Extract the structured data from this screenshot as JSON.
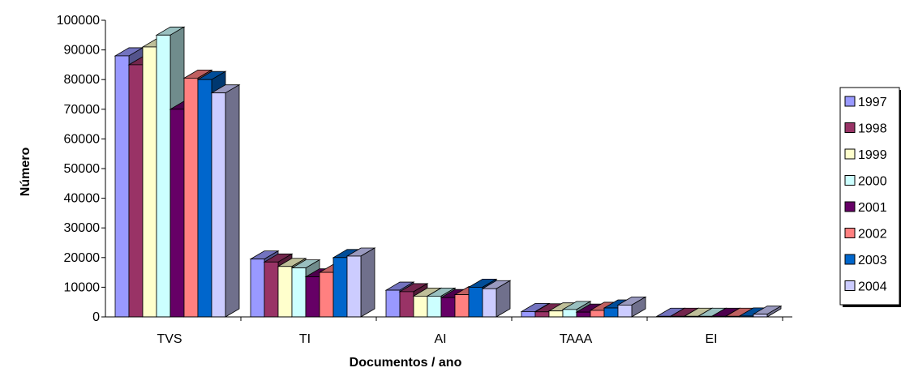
{
  "chart_data": {
    "type": "bar",
    "title": "",
    "xlabel": "Documentos / ano",
    "ylabel": "Número",
    "ylim": [
      0,
      100000
    ],
    "yticks": [
      0,
      10000,
      20000,
      30000,
      40000,
      50000,
      60000,
      70000,
      80000,
      90000,
      100000
    ],
    "categories": [
      "TVS",
      "TI",
      "AI",
      "TAAA",
      "EI"
    ],
    "legend_position": "right",
    "series": [
      {
        "name": "1997",
        "color": "#9999ff",
        "values": [
          88000,
          19500,
          9000,
          1800,
          200
        ]
      },
      {
        "name": "1998",
        "color": "#993366",
        "values": [
          85000,
          18500,
          8500,
          1700,
          200
        ]
      },
      {
        "name": "1999",
        "color": "#ffffcc",
        "values": [
          91000,
          17000,
          7000,
          2000,
          200
        ]
      },
      {
        "name": "2000",
        "color": "#ccffff",
        "values": [
          95000,
          16500,
          7000,
          2500,
          200
        ]
      },
      {
        "name": "2001",
        "color": "#660066",
        "values": [
          70000,
          13500,
          6500,
          1600,
          200
        ]
      },
      {
        "name": "2002",
        "color": "#ff8080",
        "values": [
          80500,
          15000,
          7500,
          2200,
          200
        ]
      },
      {
        "name": "2003",
        "color": "#0066cc",
        "values": [
          80000,
          20000,
          10000,
          3000,
          300
        ]
      },
      {
        "name": "2004",
        "color": "#ccccff",
        "values": [
          75500,
          20500,
          9500,
          4000,
          900
        ]
      }
    ]
  }
}
